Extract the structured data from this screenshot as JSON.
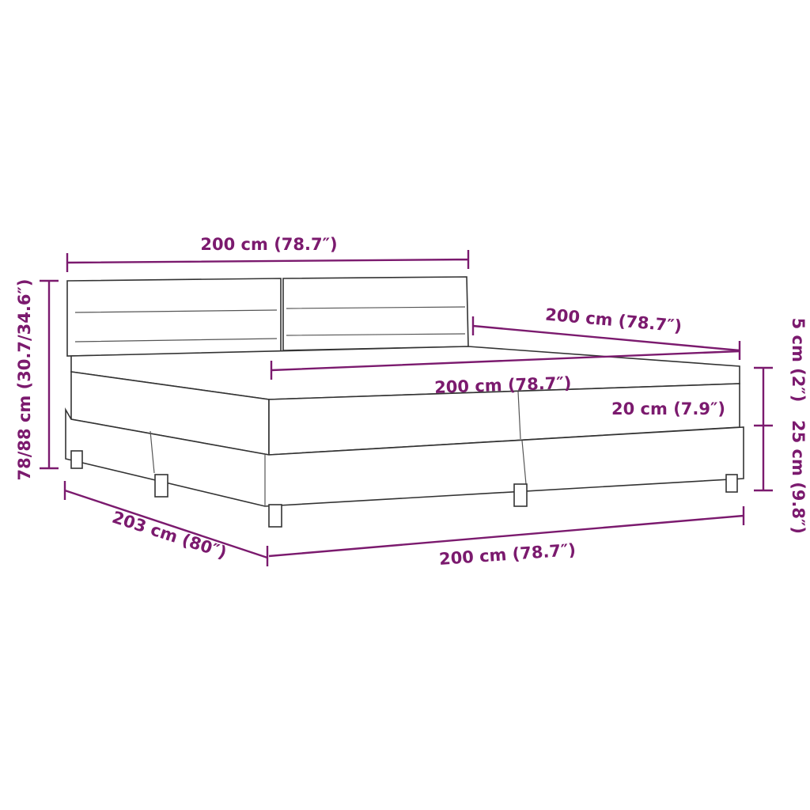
{
  "colors": {
    "dimension": "#7b1a6e",
    "outline": "#333333"
  },
  "dimensions": {
    "headboard_width": "200 cm (78.7″)",
    "side_length": "200 cm (78.7″)",
    "mattress_width": "200 cm (78.7″)",
    "mattress_height": "20 cm (7.9″)",
    "topper_height": "5 cm (2″)",
    "base_height": "25 cm (9.8″)",
    "total_height": "78/88 cm (30.7/34.6″)",
    "total_length": "203 cm (80″)",
    "front_width": "200 cm (78.7″)"
  }
}
